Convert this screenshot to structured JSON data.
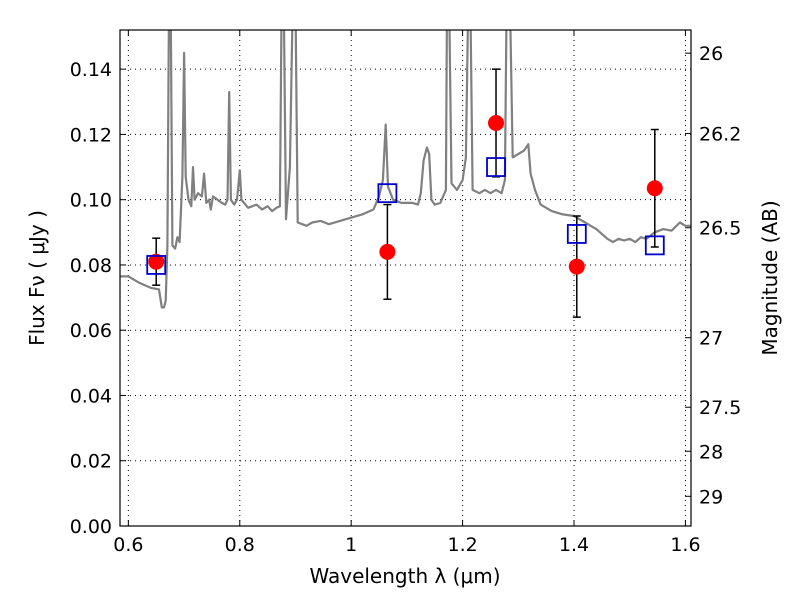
{
  "chart_data": {
    "type": "scatter",
    "xlabel": "Wavelength  λ (μm)",
    "ylabel": "Flux  Fν  ( μJy )",
    "y2label": "Magnitude (AB)",
    "xlim": [
      0.585,
      1.61
    ],
    "ylim": [
      0.0,
      0.152
    ],
    "grid": true,
    "x_ticks": [
      {
        "value": 0.6,
        "label": "0.6"
      },
      {
        "value": 0.8,
        "label": "0.8"
      },
      {
        "value": 1.0,
        "label": "1"
      },
      {
        "value": 1.2,
        "label": "1.2"
      },
      {
        "value": 1.4,
        "label": "1.4"
      },
      {
        "value": 1.6,
        "label": "1.6"
      }
    ],
    "y_ticks": [
      {
        "value": 0.0,
        "label": "0.00"
      },
      {
        "value": 0.02,
        "label": "0.02"
      },
      {
        "value": 0.04,
        "label": "0.04"
      },
      {
        "value": 0.06,
        "label": "0.06"
      },
      {
        "value": 0.08,
        "label": "0.08"
      },
      {
        "value": 0.1,
        "label": "0.10"
      },
      {
        "value": 0.12,
        "label": "0.12"
      },
      {
        "value": 0.14,
        "label": "0.14"
      }
    ],
    "y2_ticks": [
      {
        "flux": 0.1449,
        "label": "26"
      },
      {
        "flux": 0.1203,
        "label": "26.2"
      },
      {
        "flux": 0.0914,
        "label": "26.5"
      },
      {
        "flux": 0.0577,
        "label": "27"
      },
      {
        "flux": 0.0364,
        "label": "27.5"
      },
      {
        "flux": 0.0229,
        "label": "28"
      },
      {
        "flux": 0.0091,
        "label": "29"
      }
    ],
    "series": [
      {
        "kind": "line",
        "color": "#808080",
        "points": [
          [
            0.585,
            0.0765
          ],
          [
            0.6,
            0.0765
          ],
          [
            0.62,
            0.0745
          ],
          [
            0.64,
            0.073
          ],
          [
            0.655,
            0.0725
          ],
          [
            0.66,
            0.067
          ],
          [
            0.664,
            0.067
          ],
          [
            0.667,
            0.069
          ],
          [
            0.67,
            0.086
          ],
          [
            0.673,
            0.16
          ],
          [
            0.676,
            0.16
          ],
          [
            0.679,
            0.086
          ],
          [
            0.684,
            0.085
          ],
          [
            0.688,
            0.0885
          ],
          [
            0.692,
            0.087
          ],
          [
            0.697,
            0.107
          ],
          [
            0.7,
            0.145
          ],
          [
            0.703,
            0.107
          ],
          [
            0.708,
            0.1
          ],
          [
            0.713,
            0.098
          ],
          [
            0.716,
            0.11
          ],
          [
            0.719,
            0.1
          ],
          [
            0.725,
            0.102
          ],
          [
            0.732,
            0.101
          ],
          [
            0.736,
            0.108
          ],
          [
            0.74,
            0.099
          ],
          [
            0.745,
            0.1
          ],
          [
            0.748,
            0.097
          ],
          [
            0.752,
            0.101
          ],
          [
            0.76,
            0.1
          ],
          [
            0.768,
            0.099
          ],
          [
            0.774,
            0.0985
          ],
          [
            0.778,
            0.1
          ],
          [
            0.781,
            0.133
          ],
          [
            0.784,
            0.1
          ],
          [
            0.79,
            0.0985
          ],
          [
            0.795,
            0.1
          ],
          [
            0.8,
            0.109
          ],
          [
            0.803,
            0.1
          ],
          [
            0.815,
            0.0975
          ],
          [
            0.83,
            0.0985
          ],
          [
            0.84,
            0.097
          ],
          [
            0.85,
            0.098
          ],
          [
            0.858,
            0.0965
          ],
          [
            0.866,
            0.0975
          ],
          [
            0.872,
            0.098
          ],
          [
            0.875,
            0.16
          ],
          [
            0.879,
            0.16
          ],
          [
            0.883,
            0.094
          ],
          [
            0.89,
            0.11
          ],
          [
            0.895,
            0.16
          ],
          [
            0.9,
            0.16
          ],
          [
            0.904,
            0.093
          ],
          [
            0.912,
            0.0925
          ],
          [
            0.92,
            0.092
          ],
          [
            0.93,
            0.093
          ],
          [
            0.945,
            0.0935
          ],
          [
            0.96,
            0.0925
          ],
          [
            0.98,
            0.0935
          ],
          [
            1.0,
            0.0945
          ],
          [
            1.02,
            0.0955
          ],
          [
            1.04,
            0.097
          ],
          [
            1.05,
            0.101
          ],
          [
            1.057,
            0.106
          ],
          [
            1.062,
            0.123
          ],
          [
            1.066,
            0.104
          ],
          [
            1.075,
            0.1
          ],
          [
            1.09,
            0.099
          ],
          [
            1.11,
            0.099
          ],
          [
            1.12,
            0.0985
          ],
          [
            1.125,
            0.102
          ],
          [
            1.13,
            0.112
          ],
          [
            1.136,
            0.116
          ],
          [
            1.14,
            0.114
          ],
          [
            1.144,
            0.1
          ],
          [
            1.15,
            0.0985
          ],
          [
            1.16,
            0.099
          ],
          [
            1.17,
            0.103
          ],
          [
            1.172,
            0.16
          ],
          [
            1.176,
            0.16
          ],
          [
            1.18,
            0.105
          ],
          [
            1.19,
            0.103
          ],
          [
            1.2,
            0.106
          ],
          [
            1.206,
            0.113
          ],
          [
            1.21,
            0.16
          ],
          [
            1.214,
            0.16
          ],
          [
            1.218,
            0.103
          ],
          [
            1.23,
            0.102
          ],
          [
            1.24,
            0.103
          ],
          [
            1.25,
            0.102
          ],
          [
            1.26,
            0.103
          ],
          [
            1.27,
            0.102
          ],
          [
            1.276,
            0.106
          ],
          [
            1.279,
            0.16
          ],
          [
            1.285,
            0.16
          ],
          [
            1.29,
            0.113
          ],
          [
            1.3,
            0.114
          ],
          [
            1.31,
            0.115
          ],
          [
            1.318,
            0.117
          ],
          [
            1.322,
            0.108
          ],
          [
            1.33,
            0.103
          ],
          [
            1.34,
            0.0985
          ],
          [
            1.36,
            0.0965
          ],
          [
            1.38,
            0.0955
          ],
          [
            1.4,
            0.095
          ],
          [
            1.42,
            0.093
          ],
          [
            1.43,
            0.092
          ],
          [
            1.44,
            0.091
          ],
          [
            1.46,
            0.088
          ],
          [
            1.47,
            0.087
          ],
          [
            1.48,
            0.088
          ],
          [
            1.49,
            0.0875
          ],
          [
            1.5,
            0.088
          ],
          [
            1.51,
            0.087
          ],
          [
            1.52,
            0.0885
          ],
          [
            1.53,
            0.088
          ],
          [
            1.545,
            0.09
          ],
          [
            1.56,
            0.091
          ],
          [
            1.575,
            0.0905
          ],
          [
            1.59,
            0.093
          ],
          [
            1.6,
            0.092
          ],
          [
            1.61,
            0.092
          ]
        ]
      },
      {
        "kind": "points",
        "marker": "circle",
        "color": "#ff0000",
        "points": [
          {
            "x": 0.65,
            "y": 0.081,
            "err": 0.0072
          },
          {
            "x": 1.065,
            "y": 0.084,
            "err": 0.0145
          },
          {
            "x": 1.26,
            "y": 0.1235,
            "err": 0.0165
          },
          {
            "x": 1.405,
            "y": 0.0795,
            "err": 0.0155
          },
          {
            "x": 1.545,
            "y": 0.1035,
            "err": 0.018
          }
        ]
      },
      {
        "kind": "points",
        "marker": "square",
        "color": "#0000cc",
        "points": [
          {
            "x": 0.65,
            "y": 0.08
          },
          {
            "x": 1.065,
            "y": 0.102
          },
          {
            "x": 1.26,
            "y": 0.11
          },
          {
            "x": 1.405,
            "y": 0.0895
          },
          {
            "x": 1.545,
            "y": 0.086
          }
        ]
      }
    ]
  }
}
